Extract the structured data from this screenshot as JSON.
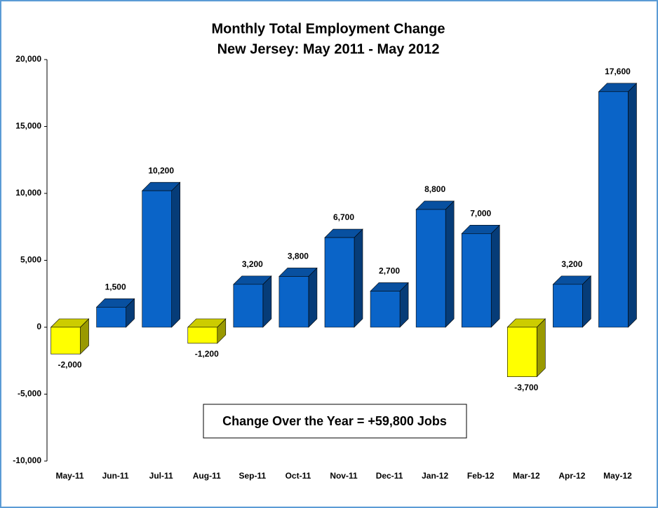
{
  "chart_data": {
    "type": "bar3d",
    "title": "Monthly Total Employment Change",
    "subtitle": "New Jersey: May 2011 - May 2012",
    "annotation": "Change Over the Year = +59,800 Jobs",
    "categories": [
      "May-11",
      "Jun-11",
      "Jul-11",
      "Aug-11",
      "Sep-11",
      "Oct-11",
      "Nov-11",
      "Dec-11",
      "Jan-12",
      "Feb-12",
      "Mar-12",
      "Apr-12",
      "May-12"
    ],
    "values": [
      -2000,
      1500,
      10200,
      -1200,
      3200,
      3800,
      6700,
      2700,
      8800,
      7000,
      -3700,
      3200,
      17600
    ],
    "value_labels": [
      "-2,000",
      "1,500",
      "10,200",
      "-1,200",
      "3,200",
      "3,800",
      "6,700",
      "2,700",
      "8,800",
      "7,000",
      "-3,700",
      "3,200",
      "17,600"
    ],
    "color": "#0a64c8",
    "negative_color": "#ffff00",
    "ylim": [
      -10000,
      20000
    ],
    "yticks": [
      {
        "value": -10000,
        "label": "-10,000"
      },
      {
        "value": -5000,
        "label": "-5,000"
      },
      0,
      {
        "value": 5000,
        "label": "5,000"
      },
      {
        "value": 10000,
        "label": "10,000"
      },
      {
        "value": 15000,
        "label": "15,000"
      },
      {
        "value": 20000,
        "label": "20,000"
      }
    ],
    "grid": false
  }
}
